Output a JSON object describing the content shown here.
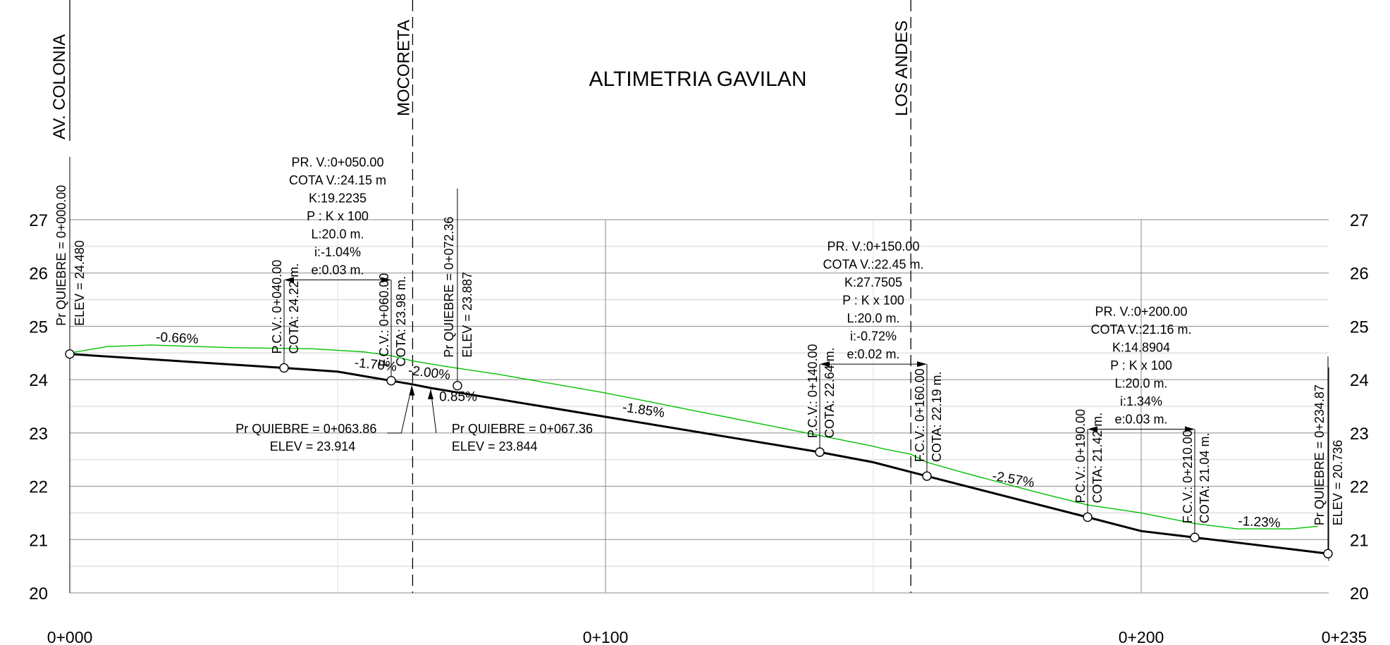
{
  "title": "ALTIMETRIA GAVILAN",
  "chart_data": {
    "type": "line",
    "x_unit": "chainage (m)",
    "y_unit": "elevation (m)",
    "xlim": [
      0,
      235
    ],
    "ylim": [
      20,
      27
    ],
    "x_ticks": [
      {
        "v": 0,
        "label": "0+000"
      },
      {
        "v": 100,
        "label": "0+100"
      },
      {
        "v": 200,
        "label": "0+200"
      },
      {
        "v": 235,
        "label": "0+235"
      }
    ],
    "y_ticks": [
      20,
      21,
      22,
      23,
      24,
      25,
      26,
      27
    ],
    "grid": true,
    "series": [
      {
        "role": "design grade line (black)",
        "color": "#000000",
        "x": [
          0,
          40,
          50,
          60,
          63.86,
          67.36,
          140,
          150,
          160,
          190,
          200,
          210,
          234.87
        ],
        "y": [
          24.48,
          24.22,
          24.15,
          23.98,
          23.914,
          23.844,
          22.64,
          22.45,
          22.19,
          21.42,
          21.16,
          21.04,
          20.736
        ]
      },
      {
        "role": "existing ground profile (green)",
        "color": "#00c000",
        "x": [
          0,
          7,
          15,
          30,
          45,
          55,
          60,
          64,
          70,
          80,
          100,
          120,
          140,
          150,
          152,
          157,
          160,
          167,
          180,
          190,
          200,
          210,
          218,
          228,
          233
        ],
        "y": [
          24.5,
          24.62,
          24.65,
          24.6,
          24.58,
          24.52,
          24.45,
          24.35,
          24.25,
          24.1,
          23.75,
          23.35,
          22.95,
          22.75,
          22.7,
          22.6,
          22.45,
          22.25,
          21.9,
          21.65,
          21.5,
          21.3,
          21.2,
          21.2,
          21.25
        ]
      }
    ],
    "breakpoints": [
      {
        "x": 0,
        "y": 24.48,
        "circle": true,
        "lines": [
          "Pr QUIEBRE = 0+000.00",
          "ELEV =  24.480"
        ]
      },
      {
        "x": 60,
        "y": 23.98,
        "circle": true
      },
      {
        "x": 40,
        "y": 24.22,
        "circle": true
      },
      {
        "x": 72.36,
        "y": 23.887,
        "circle": true,
        "lines": [
          "Pr QUIEBRE = 0+072.36",
          "ELEV =  23.887"
        ]
      },
      {
        "x": 140,
        "y": 22.64,
        "circle": true
      },
      {
        "x": 160,
        "y": 22.19,
        "circle": true
      },
      {
        "x": 190,
        "y": 21.42,
        "circle": true
      },
      {
        "x": 210,
        "y": 21.04,
        "circle": true
      },
      {
        "x": 234.87,
        "y": 20.736,
        "circle": true,
        "lines": [
          "Pr QUIEBRE = 0+234.87",
          "ELEV =  20.736"
        ]
      }
    ],
    "leader_labels": [
      {
        "x": 63.86,
        "y": 23.914,
        "side": "left",
        "lines": [
          "Pr QUIEBRE = 0+063.86",
          "ELEV =  23.914"
        ]
      },
      {
        "x": 67.36,
        "y": 23.844,
        "side": "right",
        "lines": [
          "Pr QUIEBRE = 0+067.36",
          "ELEV =  23.844"
        ]
      }
    ],
    "vertical_curves": [
      {
        "pcv": {
          "x": 40,
          "lines": [
            "P.C.V.: 0+040.00",
            "COTA: 24.22 m."
          ]
        },
        "fcv": {
          "x": 60,
          "lines": [
            "F.C.V.: 0+060.00",
            "COTA: 23.98 m."
          ]
        },
        "info": [
          "PR. V.:0+050.00",
          "COTA V.:24.15 m",
          "K:19.2235",
          "P : K x 100",
          "L:20.0 m.",
          "i:-1.04%",
          "e:0.03 m."
        ]
      },
      {
        "pcv": {
          "x": 140,
          "lines": [
            "P.C.V.: 0+140.00",
            "COTA: 22.64 m."
          ]
        },
        "fcv": {
          "x": 160,
          "lines": [
            "F.C.V.: 0+160.00",
            "COTA: 22.19 m."
          ]
        },
        "info": [
          "PR. V.:0+150.00",
          "COTA V.:22.45 m.",
          "K:27.7505",
          "P : K x 100",
          "L:20.0 m.",
          "i:-0.72%",
          "e:0.02 m."
        ]
      },
      {
        "pcv": {
          "x": 190,
          "lines": [
            "P.C.V.: 0+190.00",
            "COTA: 21.42 m."
          ]
        },
        "fcv": {
          "x": 210,
          "lines": [
            "F.C.V.: 0+210.00",
            "COTA: 21.04 m."
          ]
        },
        "info": [
          "PR. V.:0+200.00",
          "COTA V.:21.16 m.",
          "K:14.8904",
          "P : K x 100",
          "L:20.0 m.",
          "i:1.34%",
          "e:0.03 m."
        ]
      }
    ],
    "grades": [
      {
        "text": "-0.66%",
        "x": 20,
        "y": 24.7,
        "rot": 3
      },
      {
        "text": "-1.70%",
        "x": 57,
        "y": 24.2,
        "rot": 6
      },
      {
        "text": "-2.00%",
        "x": 67,
        "y": 24.05,
        "rot": 7
      },
      {
        "text": "0.85%",
        "x": 72.5,
        "y": 23.6,
        "rot": 0
      },
      {
        "text": "-1.85%",
        "x": 107,
        "y": 23.35,
        "rot": 8
      },
      {
        "text": "-2.57%",
        "x": 176,
        "y": 22.05,
        "rot": 10
      },
      {
        "text": "-1.23%",
        "x": 222,
        "y": 21.25,
        "rot": 3
      }
    ],
    "streets": [
      {
        "name": "AV. COLONIA",
        "x": 0,
        "dashed": false
      },
      {
        "name": "MOCORETA",
        "x": 64,
        "dashed": true
      },
      {
        "name": "LOS ANDES",
        "x": 157,
        "dashed": true
      }
    ]
  }
}
